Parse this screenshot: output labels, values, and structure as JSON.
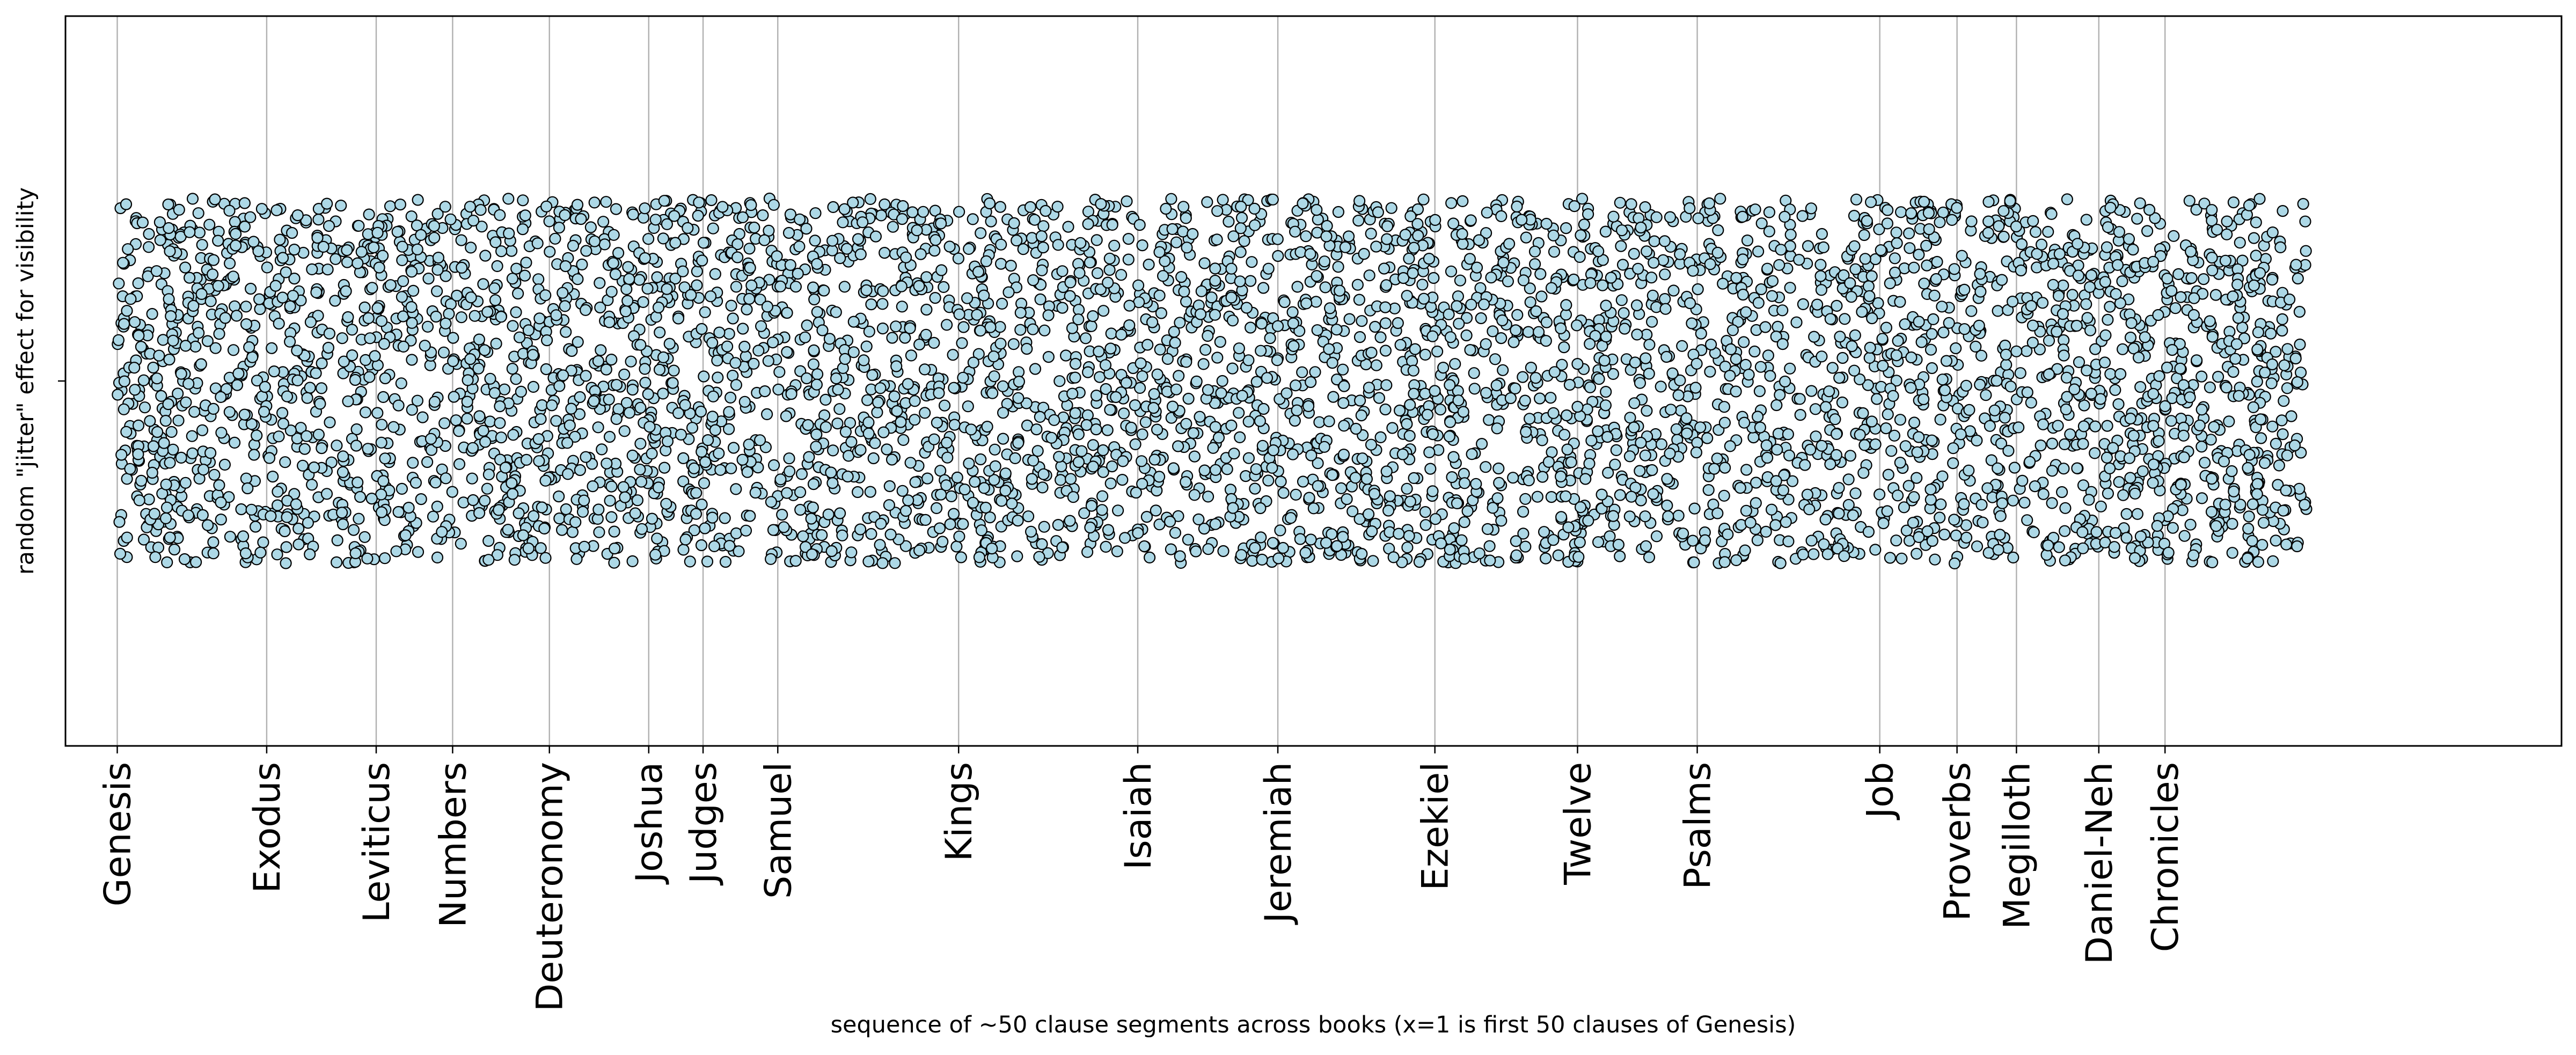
{
  "chart_data": {
    "type": "scatter",
    "title": "",
    "xlabel": "sequence of ~50 clause segments across books (x=1 is first 50 clauses of Genesis)",
    "ylabel": "random \"jitter\" effect for visibility",
    "xlim": [
      -60,
      2880
    ],
    "ylim": [
      -2,
      2
    ],
    "y_ticks": [
      0
    ],
    "y_tick_labels": [
      ""
    ],
    "grid": "vertical lines at book boundaries",
    "legend": "none",
    "marker_color": "#add8e6",
    "marker_edge_color": "#000000",
    "points_per_segment_approx": 2,
    "x_max": 2580,
    "jitter_range": [
      -1,
      1
    ],
    "books": [
      {
        "name": "Genesis",
        "x": 1
      },
      {
        "name": "Exodus",
        "x": 177
      },
      {
        "name": "Leviticus",
        "x": 306
      },
      {
        "name": "Numbers",
        "x": 396
      },
      {
        "name": "Deuteronomy",
        "x": 510
      },
      {
        "name": "Joshua",
        "x": 627
      },
      {
        "name": "Judges",
        "x": 691
      },
      {
        "name": "Samuel",
        "x": 779
      },
      {
        "name": "Kings",
        "x": 992
      },
      {
        "name": "Isaiah",
        "x": 1203
      },
      {
        "name": "Jeremiah",
        "x": 1368
      },
      {
        "name": "Ezekiel",
        "x": 1553
      },
      {
        "name": "Twelve",
        "x": 1721
      },
      {
        "name": "Psalms",
        "x": 1862
      },
      {
        "name": "Job",
        "x": 2077
      },
      {
        "name": "Proverbs",
        "x": 2168
      },
      {
        "name": "Megilloth",
        "x": 2238
      },
      {
        "name": "Daniel-Neh",
        "x": 2335
      },
      {
        "name": "Chronicles",
        "x": 2413
      }
    ]
  }
}
